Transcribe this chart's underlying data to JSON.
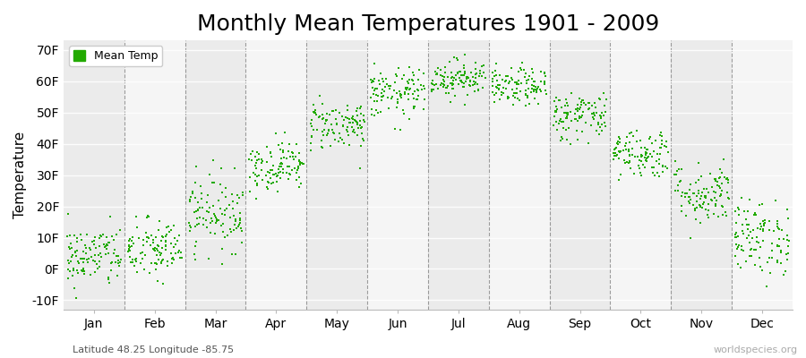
{
  "title": "Monthly Mean Temperatures 1901 - 2009",
  "ylabel": "Temperature",
  "subtitle": "Latitude 48.25 Longitude -85.75",
  "watermark": "worldspecies.org",
  "legend_label": "Mean Temp",
  "background_color": "#ffffff",
  "plot_bg_color_odd": "#ebebeb",
  "plot_bg_color_even": "#f5f5f5",
  "dot_color": "#22aa00",
  "ylim": [
    -13,
    73
  ],
  "yticks": [
    -10,
    0,
    10,
    20,
    30,
    40,
    50,
    60,
    70
  ],
  "ytick_labels": [
    "-10F",
    "0F",
    "10F",
    "20F",
    "30F",
    "40F",
    "50F",
    "60F",
    "70F"
  ],
  "months": [
    "Jan",
    "Feb",
    "Mar",
    "Apr",
    "May",
    "Jun",
    "Jul",
    "Aug",
    "Sep",
    "Oct",
    "Nov",
    "Dec"
  ],
  "month_means_F": [
    4,
    6,
    18,
    33,
    46,
    56,
    61,
    58,
    49,
    37,
    24,
    10
  ],
  "month_stds_F": [
    5,
    5,
    6,
    4,
    4,
    4,
    3,
    3,
    4,
    4,
    5,
    6
  ],
  "n_years": 109,
  "seed": 42,
  "title_fontsize": 18,
  "label_fontsize": 11,
  "tick_fontsize": 10,
  "marker_size": 3
}
